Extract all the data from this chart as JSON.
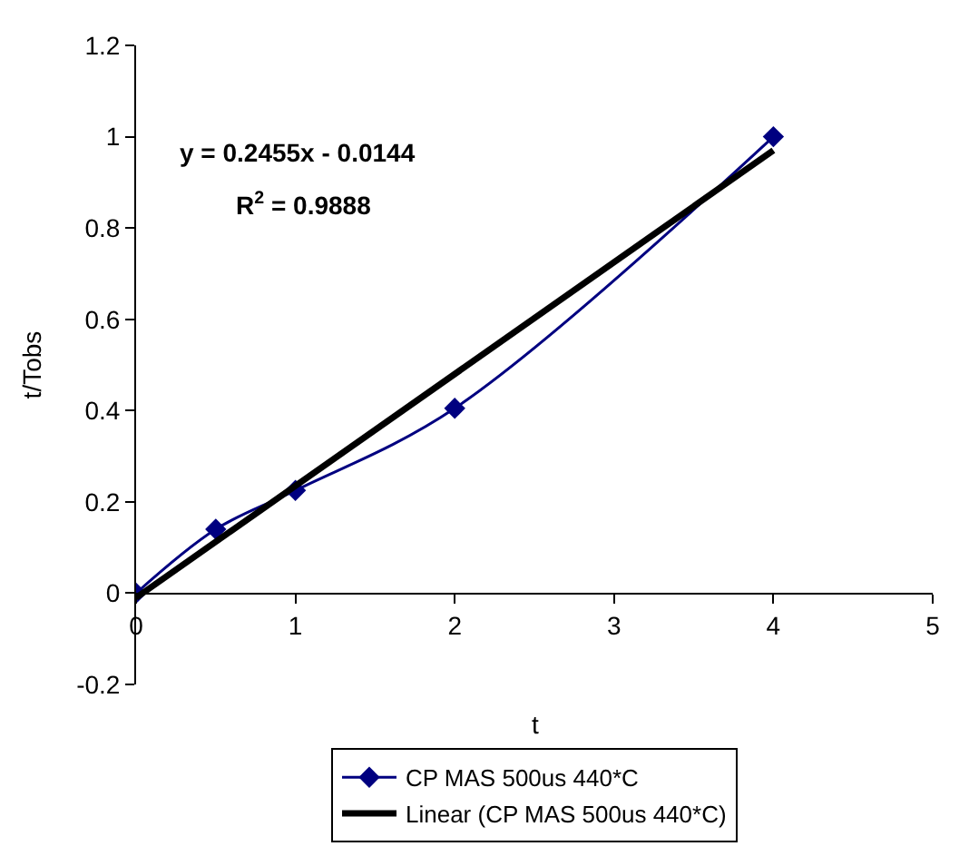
{
  "chart_data": {
    "type": "line",
    "xlabel": "t",
    "ylabel": "t/Tobs",
    "xlim": [
      0,
      5
    ],
    "ylim": [
      -0.2,
      1.2
    ],
    "xticks": [
      0,
      1,
      2,
      3,
      4,
      5
    ],
    "yticks": [
      -0.2,
      0,
      0.2,
      0.4,
      0.6,
      0.8,
      1,
      1.2
    ],
    "legend": "bottom",
    "annotations": [
      "y = 0.2455x - 0.0144",
      "R$^{2}$ = 0.9888"
    ],
    "series": [
      {
        "name": "CP MAS 500us 440*C",
        "color": "#000080",
        "marker": "diamond",
        "x": [
          0,
          0.5,
          1,
          2,
          4
        ],
        "values": [
          0,
          0.14,
          0.225,
          0.405,
          1.0
        ]
      },
      {
        "name": "Linear (CP MAS 500us 440*C)",
        "color": "#000000",
        "marker": "none",
        "x": [
          0,
          4
        ],
        "values": [
          -0.01,
          0.97
        ]
      }
    ]
  }
}
